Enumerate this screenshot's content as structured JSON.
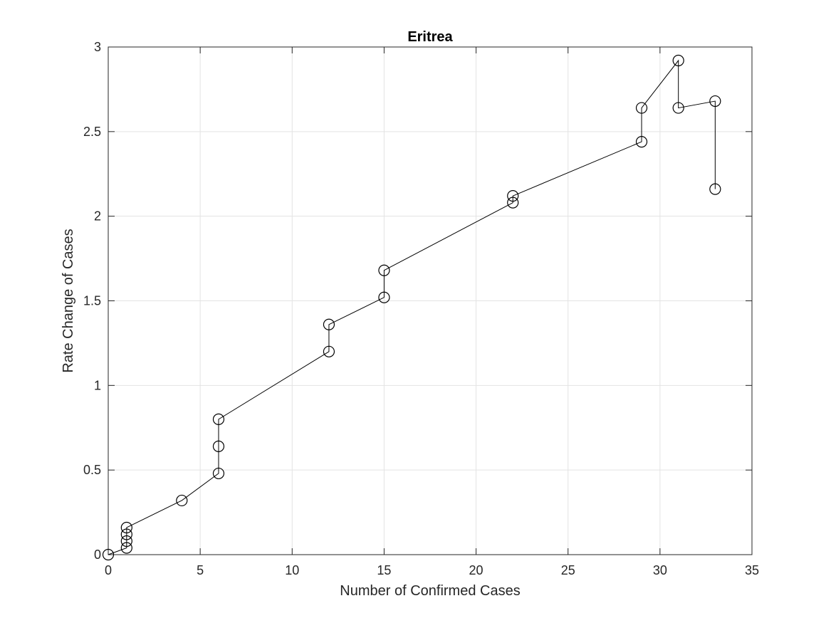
{
  "chart_data": {
    "type": "line",
    "title": "Eritrea",
    "xlabel": "Number of Confirmed Cases",
    "ylabel": "Rate Change of Cases",
    "xlim": [
      0,
      35
    ],
    "ylim": [
      0,
      3
    ],
    "xticks": [
      0,
      5,
      10,
      15,
      20,
      25,
      30,
      35
    ],
    "yticks": [
      0,
      0.5,
      1,
      1.5,
      2,
      2.5,
      3
    ],
    "xtick_labels": [
      "0",
      "5",
      "10",
      "15",
      "20",
      "25",
      "30",
      "35"
    ],
    "ytick_labels": [
      "0",
      "0.5",
      "1",
      "1.5",
      "2",
      "2.5",
      "3"
    ],
    "grid": true,
    "marker": "circle",
    "series": [
      {
        "color": "#000000",
        "points": [
          [
            0,
            0
          ],
          [
            1,
            0.04
          ],
          [
            1,
            0.08
          ],
          [
            1,
            0.12
          ],
          [
            1,
            0.16
          ],
          [
            4,
            0.32
          ],
          [
            6,
            0.48
          ],
          [
            6,
            0.64
          ],
          [
            6,
            0.8
          ],
          [
            12,
            1.2
          ],
          [
            12,
            1.36
          ],
          [
            15,
            1.52
          ],
          [
            15,
            1.68
          ],
          [
            22,
            2.08
          ],
          [
            22,
            2.12
          ],
          [
            29,
            2.44
          ],
          [
            29,
            2.64
          ],
          [
            31,
            2.92
          ],
          [
            31,
            2.64
          ],
          [
            33,
            2.68
          ],
          [
            33,
            2.16
          ]
        ]
      }
    ]
  }
}
